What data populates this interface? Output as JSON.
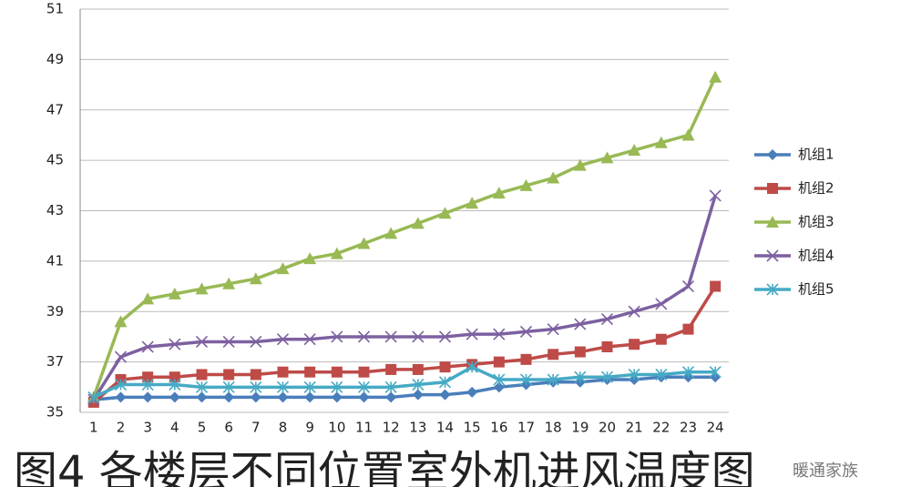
{
  "chart_data": {
    "type": "line",
    "title": "图4 各楼层不同位置室外机进风温度图",
    "watermark": "暖通家族",
    "categories": [
      "1",
      "2",
      "3",
      "4",
      "5",
      "6",
      "7",
      "8",
      "9",
      "10",
      "11",
      "12",
      "13",
      "14",
      "15",
      "16",
      "17",
      "18",
      "19",
      "20",
      "21",
      "22",
      "23",
      "24"
    ],
    "series": [
      {
        "name": "机组1",
        "color": "#4a7ebb",
        "marker": "diamond",
        "values": [
          35.5,
          35.6,
          35.6,
          35.6,
          35.6,
          35.6,
          35.6,
          35.6,
          35.6,
          35.6,
          35.6,
          35.6,
          35.7,
          35.7,
          35.8,
          36.0,
          36.1,
          36.2,
          36.2,
          36.3,
          36.3,
          36.4,
          36.4,
          36.4
        ]
      },
      {
        "name": "机组2",
        "color": "#be4b48",
        "marker": "square",
        "values": [
          35.4,
          36.3,
          36.4,
          36.4,
          36.5,
          36.5,
          36.5,
          36.6,
          36.6,
          36.6,
          36.6,
          36.7,
          36.7,
          36.8,
          36.9,
          37.0,
          37.1,
          37.3,
          37.4,
          37.6,
          37.7,
          37.9,
          38.3,
          40.0
        ]
      },
      {
        "name": "机组3",
        "color": "#98b954",
        "marker": "triangle",
        "values": [
          35.6,
          38.6,
          39.5,
          39.7,
          39.9,
          40.1,
          40.3,
          40.7,
          41.1,
          41.3,
          41.7,
          42.1,
          42.5,
          42.9,
          43.3,
          43.7,
          44.0,
          44.3,
          44.8,
          45.1,
          45.4,
          45.7,
          46.0,
          48.3
        ]
      },
      {
        "name": "机组4",
        "color": "#7d60a0",
        "marker": "x",
        "values": [
          35.5,
          37.2,
          37.6,
          37.7,
          37.8,
          37.8,
          37.8,
          37.9,
          37.9,
          38.0,
          38.0,
          38.0,
          38.0,
          38.0,
          38.1,
          38.1,
          38.2,
          38.3,
          38.5,
          38.7,
          39.0,
          39.3,
          40.0,
          43.6
        ]
      },
      {
        "name": "机组5",
        "color": "#46aac5",
        "marker": "star",
        "values": [
          35.6,
          36.1,
          36.1,
          36.1,
          36.0,
          36.0,
          36.0,
          36.0,
          36.0,
          36.0,
          36.0,
          36.0,
          36.1,
          36.2,
          36.8,
          36.3,
          36.3,
          36.3,
          36.4,
          36.4,
          36.5,
          36.5,
          36.6,
          36.6
        ]
      }
    ],
    "ylim": [
      35,
      51
    ],
    "yticks": [
      35,
      37,
      39,
      41,
      43,
      45,
      47,
      49,
      51
    ],
    "grid": true,
    "legend": "right"
  }
}
